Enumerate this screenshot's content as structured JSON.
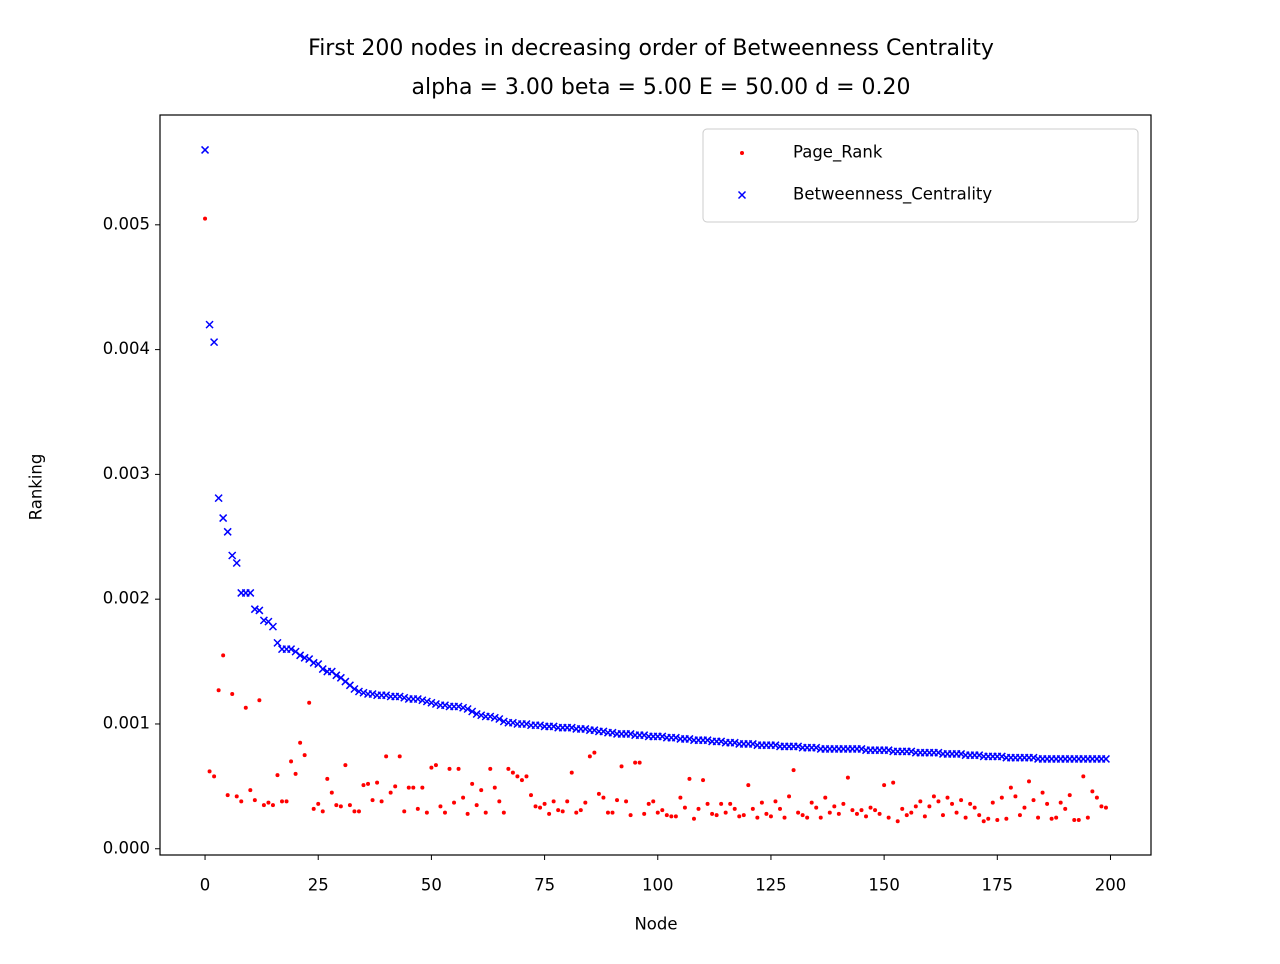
{
  "chart_data": {
    "type": "scatter",
    "title": "First 200 nodes in decreasing order of Betweenness Centrality",
    "subtitle": "alpha = 3.00 beta = 5.00 E = 50.00 d = 0.20",
    "x_label": "Node",
    "y_label": "Ranking",
    "x": [
      0,
      1,
      2,
      3,
      4,
      5,
      6,
      7,
      8,
      9,
      10,
      11,
      12,
      13,
      14,
      15,
      16,
      17,
      18,
      19,
      20,
      21,
      22,
      23,
      24,
      25,
      26,
      27,
      28,
      29,
      30,
      31,
      32,
      33,
      34,
      35,
      36,
      37,
      38,
      39,
      40,
      41,
      42,
      43,
      44,
      45,
      46,
      47,
      48,
      49,
      50,
      51,
      52,
      53,
      54,
      55,
      56,
      57,
      58,
      59,
      60,
      61,
      62,
      63,
      64,
      65,
      66,
      67,
      68,
      69,
      70,
      71,
      72,
      73,
      74,
      75,
      76,
      77,
      78,
      79,
      80,
      81,
      82,
      83,
      84,
      85,
      86,
      87,
      88,
      89,
      90,
      91,
      92,
      93,
      94,
      95,
      96,
      97,
      98,
      99,
      100,
      101,
      102,
      103,
      104,
      105,
      106,
      107,
      108,
      109,
      110,
      111,
      112,
      113,
      114,
      115,
      116,
      117,
      118,
      119,
      120,
      121,
      122,
      123,
      124,
      125,
      126,
      127,
      128,
      129,
      130,
      131,
      132,
      133,
      134,
      135,
      136,
      137,
      138,
      139,
      140,
      141,
      142,
      143,
      144,
      145,
      146,
      147,
      148,
      149,
      150,
      151,
      152,
      153,
      154,
      155,
      156,
      157,
      158,
      159,
      160,
      161,
      162,
      163,
      164,
      165,
      166,
      167,
      168,
      169,
      170,
      171,
      172,
      173,
      174,
      175,
      176,
      177,
      178,
      179,
      180,
      181,
      182,
      183,
      184,
      185,
      186,
      187,
      188,
      189,
      190,
      191,
      192,
      193,
      194,
      195,
      196,
      197,
      198,
      199
    ],
    "series": [
      {
        "name": "Page_Rank",
        "color": "#ff0000",
        "marker": "dot",
        "values": [
          0.00505,
          0.00062,
          0.00058,
          0.00127,
          0.00155,
          0.00043,
          0.00124,
          0.00042,
          0.00038,
          0.00113,
          0.00047,
          0.00039,
          0.00119,
          0.00035,
          0.00037,
          0.00035,
          0.00059,
          0.00038,
          0.00038,
          0.0007,
          0.0006,
          0.00085,
          0.00075,
          0.00117,
          0.00032,
          0.00036,
          0.0003,
          0.00056,
          0.00045,
          0.00035,
          0.00034,
          0.00067,
          0.00035,
          0.0003,
          0.0003,
          0.00051,
          0.00052,
          0.00039,
          0.00053,
          0.00038,
          0.00074,
          0.00045,
          0.0005,
          0.00074,
          0.0003,
          0.00049,
          0.00049,
          0.00032,
          0.00049,
          0.00029,
          0.00065,
          0.00067,
          0.00034,
          0.00029,
          0.00064,
          0.00037,
          0.00064,
          0.00041,
          0.00028,
          0.00052,
          0.00035,
          0.00047,
          0.00029,
          0.00064,
          0.00049,
          0.00038,
          0.00029,
          0.00064,
          0.00061,
          0.00058,
          0.00055,
          0.00058,
          0.00043,
          0.00034,
          0.00033,
          0.00036,
          0.00028,
          0.00038,
          0.00031,
          0.0003,
          0.00038,
          0.00061,
          0.00029,
          0.00031,
          0.00037,
          0.00074,
          0.00077,
          0.00044,
          0.00041,
          0.00029,
          0.00029,
          0.00039,
          0.00066,
          0.00038,
          0.00027,
          0.00069,
          0.00069,
          0.00028,
          0.00036,
          0.00038,
          0.00029,
          0.00031,
          0.00027,
          0.00026,
          0.00026,
          0.00041,
          0.00033,
          0.00056,
          0.00024,
          0.00032,
          0.00055,
          0.00036,
          0.00028,
          0.00027,
          0.00036,
          0.00029,
          0.00036,
          0.00032,
          0.00026,
          0.00027,
          0.00051,
          0.00032,
          0.00025,
          0.00037,
          0.00028,
          0.00026,
          0.00038,
          0.00032,
          0.00025,
          0.00042,
          0.00063,
          0.00029,
          0.00027,
          0.00025,
          0.00037,
          0.00033,
          0.00025,
          0.00041,
          0.00029,
          0.00034,
          0.00028,
          0.00036,
          0.00057,
          0.00031,
          0.00028,
          0.00031,
          0.00026,
          0.00033,
          0.00031,
          0.00028,
          0.00051,
          0.00025,
          0.00053,
          0.00022,
          0.00032,
          0.00027,
          0.00029,
          0.00034,
          0.00038,
          0.00026,
          0.00034,
          0.00042,
          0.00038,
          0.00027,
          0.00041,
          0.00036,
          0.00029,
          0.00039,
          0.00025,
          0.00036,
          0.00033,
          0.00027,
          0.00022,
          0.00024,
          0.00037,
          0.00023,
          0.00041,
          0.00024,
          0.00049,
          0.00042,
          0.00027,
          0.00033,
          0.00054,
          0.00039,
          0.00025,
          0.00045,
          0.00036,
          0.00024,
          0.00025,
          0.00037,
          0.00032,
          0.00043,
          0.00023,
          0.00023,
          0.00058,
          0.00025,
          0.00046,
          0.00041,
          0.00034,
          0.00033
        ]
      },
      {
        "name": "Betweenness_Centrality",
        "color": "#0000ff",
        "marker": "x",
        "values": [
          0.0056,
          0.0042,
          0.00406,
          0.00281,
          0.00265,
          0.00254,
          0.00235,
          0.00229,
          0.00205,
          0.00205,
          0.00205,
          0.00192,
          0.00191,
          0.00183,
          0.00182,
          0.00178,
          0.00165,
          0.0016,
          0.0016,
          0.0016,
          0.00158,
          0.00155,
          0.00153,
          0.00152,
          0.00149,
          0.00148,
          0.00144,
          0.00142,
          0.00142,
          0.00139,
          0.00137,
          0.00134,
          0.00131,
          0.00128,
          0.00126,
          0.00125,
          0.00124,
          0.00124,
          0.00123,
          0.00123,
          0.00123,
          0.00122,
          0.00122,
          0.00122,
          0.00121,
          0.0012,
          0.0012,
          0.0012,
          0.00119,
          0.00118,
          0.00117,
          0.00116,
          0.00115,
          0.00115,
          0.00114,
          0.00114,
          0.00114,
          0.00113,
          0.00112,
          0.0011,
          0.00108,
          0.00107,
          0.00106,
          0.00106,
          0.00105,
          0.00104,
          0.00102,
          0.00101,
          0.00101,
          0.001,
          0.001,
          0.001,
          0.00099,
          0.00099,
          0.00099,
          0.00098,
          0.00098,
          0.00098,
          0.00097,
          0.00097,
          0.00097,
          0.00097,
          0.00096,
          0.00096,
          0.00096,
          0.00095,
          0.00095,
          0.00094,
          0.00094,
          0.00093,
          0.00093,
          0.00092,
          0.00092,
          0.00092,
          0.00092,
          0.00091,
          0.00091,
          0.00091,
          0.0009,
          0.0009,
          0.0009,
          0.0009,
          0.00089,
          0.00089,
          0.00089,
          0.00088,
          0.00088,
          0.00088,
          0.00087,
          0.00087,
          0.00087,
          0.00087,
          0.00086,
          0.00086,
          0.00086,
          0.00085,
          0.00085,
          0.00085,
          0.00084,
          0.00084,
          0.00084,
          0.00084,
          0.00083,
          0.00083,
          0.00083,
          0.00083,
          0.00083,
          0.00082,
          0.00082,
          0.00082,
          0.00082,
          0.00082,
          0.00081,
          0.00081,
          0.00081,
          0.00081,
          0.0008,
          0.0008,
          0.0008,
          0.0008,
          0.0008,
          0.0008,
          0.0008,
          0.0008,
          0.0008,
          0.0008,
          0.00079,
          0.00079,
          0.00079,
          0.00079,
          0.00079,
          0.00079,
          0.00078,
          0.00078,
          0.00078,
          0.00078,
          0.00078,
          0.00077,
          0.00077,
          0.00077,
          0.00077,
          0.00077,
          0.00077,
          0.00076,
          0.00076,
          0.00076,
          0.00076,
          0.00076,
          0.00075,
          0.00075,
          0.00075,
          0.00075,
          0.00074,
          0.00074,
          0.00074,
          0.00074,
          0.00074,
          0.00073,
          0.00073,
          0.00073,
          0.00073,
          0.00073,
          0.00073,
          0.00073,
          0.00072,
          0.00072,
          0.00072,
          0.00072,
          0.00072,
          0.00072,
          0.00072,
          0.00072,
          0.00072,
          0.00072,
          0.00072,
          0.00072,
          0.00072,
          0.00072,
          0.00072,
          0.00072
        ]
      }
    ],
    "xlim": [
      -9.95,
      208.95
    ],
    "ylim": [
      -5e-05,
      0.00588
    ],
    "xticks": [
      0,
      25,
      50,
      75,
      100,
      125,
      150,
      175,
      200
    ],
    "yticks": [
      {
        "value": 0,
        "label": "0.000"
      },
      0.001,
      0.002,
      0.003,
      0.004,
      0.005
    ],
    "legend": "upper right",
    "grid": false
  }
}
